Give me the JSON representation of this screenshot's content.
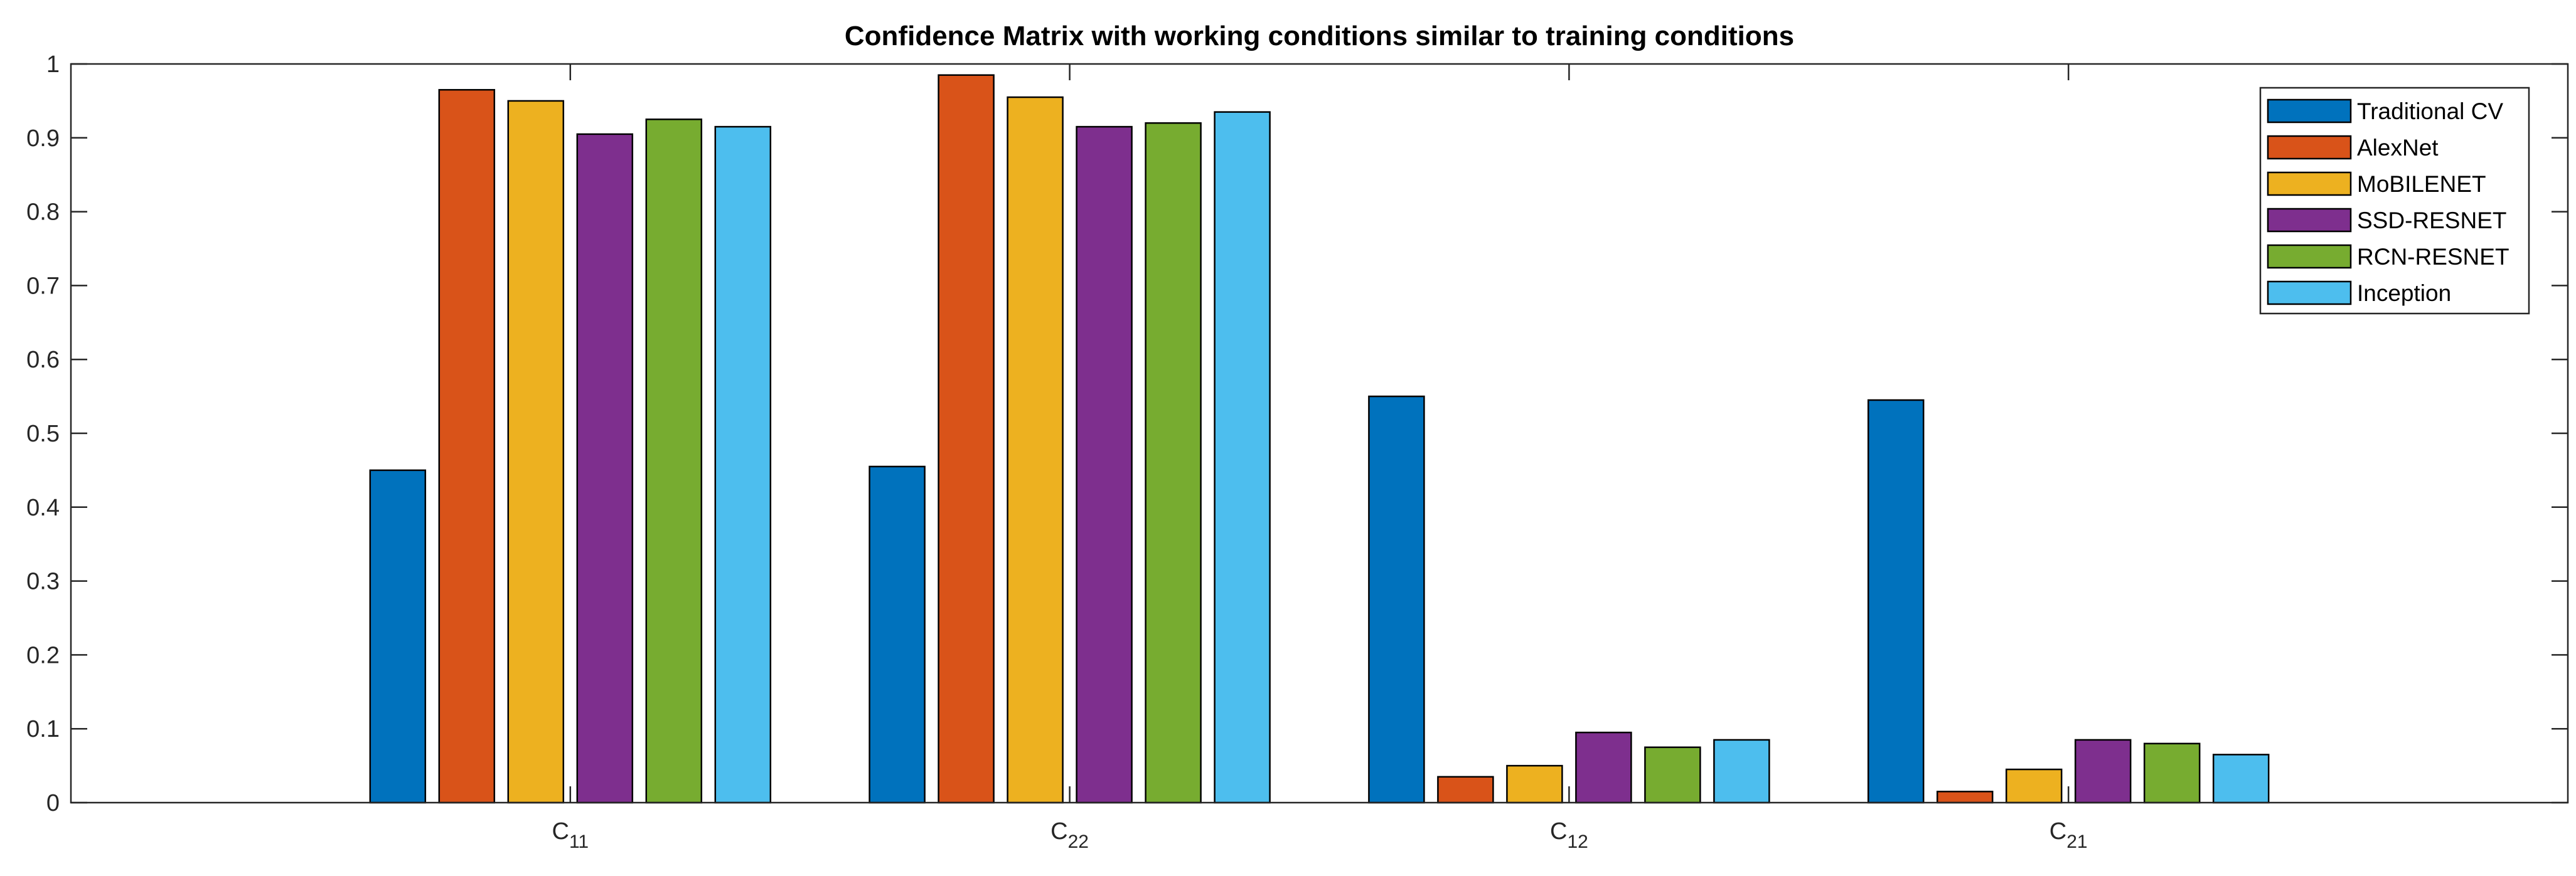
{
  "chart_data": {
    "type": "bar",
    "title": "Confidence Matrix with working conditions similar to training conditions",
    "xlabel": "",
    "ylabel": "",
    "categories": [
      {
        "base": "C",
        "sub": "11"
      },
      {
        "base": "C",
        "sub": "22"
      },
      {
        "base": "C",
        "sub": "12"
      },
      {
        "base": "C",
        "sub": "21"
      }
    ],
    "ylim": [
      0,
      1
    ],
    "yticks": [
      "0",
      "0.1",
      "0.2",
      "0.3",
      "0.4",
      "0.5",
      "0.6",
      "0.7",
      "0.8",
      "0.9",
      "1"
    ],
    "grid": false,
    "legend_position": "top-right",
    "series": [
      {
        "name": "Traditional CV",
        "color": "#0072BD",
        "values": [
          0.45,
          0.455,
          0.55,
          0.545
        ]
      },
      {
        "name": "AlexNet",
        "color": "#D95319",
        "values": [
          0.965,
          0.985,
          0.035,
          0.015
        ]
      },
      {
        "name": "MoBILENET",
        "color": "#EDB120",
        "values": [
          0.95,
          0.955,
          0.05,
          0.045
        ]
      },
      {
        "name": "SSD-RESNET",
        "color": "#7E2F8E",
        "values": [
          0.905,
          0.915,
          0.095,
          0.085
        ]
      },
      {
        "name": "RCN-RESNET",
        "color": "#77AC30",
        "values": [
          0.925,
          0.92,
          0.075,
          0.08
        ]
      },
      {
        "name": "Inception",
        "color": "#4DBEEE",
        "values": [
          0.915,
          0.935,
          0.085,
          0.065
        ]
      }
    ]
  }
}
